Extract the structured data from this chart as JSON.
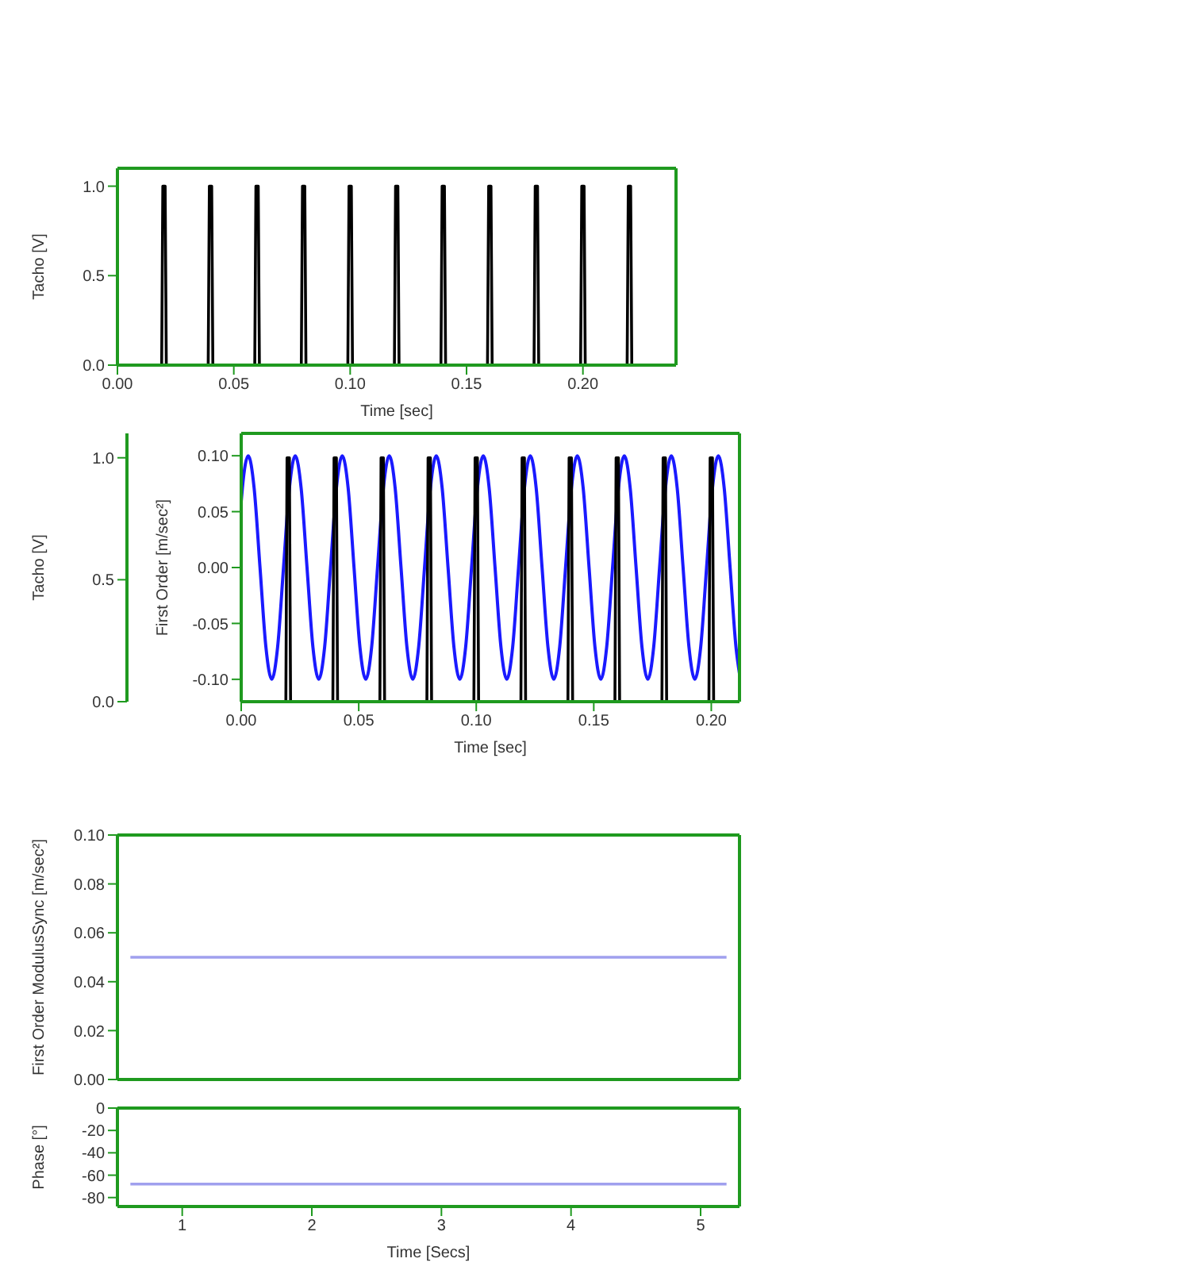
{
  "chart_data": [
    {
      "type": "line",
      "xlabel": "Time [sec]",
      "ylabel": "Tacho [V]",
      "marker": "none",
      "xlim": [
        0,
        0.24
      ],
      "xticks": [
        {
          "value": 0,
          "label": "0.00"
        },
        {
          "value": 0.05,
          "label": "0.05"
        },
        {
          "value": 0.1,
          "label": "0.10"
        },
        {
          "value": 0.15,
          "label": "0.15"
        },
        {
          "value": 0.2,
          "label": "0.20"
        }
      ],
      "ylim": [
        0,
        1.1
      ],
      "yticks": [
        {
          "value": 0,
          "label": "0.0"
        },
        {
          "value": 0.5,
          "label": "0.5"
        },
        {
          "value": 1,
          "label": "1.0"
        }
      ],
      "series": [
        {
          "color": "#000000",
          "x": [
            0,
            0.019,
            0.0195,
            0.0205,
            0.021,
            0.039,
            0.0395,
            0.0405,
            0.041,
            0.059,
            0.0595,
            0.0605,
            0.061,
            0.079,
            0.0795,
            0.0805,
            0.081,
            0.099,
            0.0995,
            0.1005,
            0.101,
            0.119,
            0.1195,
            0.1205,
            0.121,
            0.139,
            0.1395,
            0.1405,
            0.141,
            0.159,
            0.1595,
            0.1605,
            0.161,
            0.179,
            0.1795,
            0.1805,
            0.181,
            0.199,
            0.1995,
            0.2005,
            0.201,
            0.219,
            0.2195,
            0.2205,
            0.221,
            0.24
          ],
          "values": [
            0,
            0,
            1,
            1,
            0,
            0,
            1,
            1,
            0,
            0,
            1,
            1,
            0,
            0,
            1,
            1,
            0,
            0,
            1,
            1,
            0,
            0,
            1,
            1,
            0,
            0,
            1,
            1,
            0,
            0,
            1,
            1,
            0,
            0,
            1,
            1,
            0,
            0,
            1,
            1,
            0,
            0,
            1,
            1,
            0,
            0
          ]
        }
      ]
    },
    {
      "type": "line",
      "xlabel": "Time [sec]",
      "ylabel": "Tacho [V]",
      "y2label": "First Order [m/sec²]",
      "marker": "none",
      "xlim": [
        0,
        0.212
      ],
      "xticks": [
        {
          "value": 0,
          "label": "0.00"
        },
        {
          "value": 0.05,
          "label": "0.05"
        },
        {
          "value": 0.1,
          "label": "0.10"
        },
        {
          "value": 0.15,
          "label": "0.15"
        },
        {
          "value": 0.2,
          "label": "0.20"
        }
      ],
      "ylim": [
        0,
        1.1
      ],
      "yticks": [
        {
          "value": 0,
          "label": "0.0"
        },
        {
          "value": 0.5,
          "label": "0.5"
        },
        {
          "value": 1,
          "label": "1.0"
        }
      ],
      "y2lim": [
        -0.12,
        0.12
      ],
      "y2ticks": [
        {
          "value": -0.1,
          "label": "-0.10"
        },
        {
          "value": -0.05,
          "label": "-0.05"
        },
        {
          "value": 0,
          "label": "0.00"
        },
        {
          "value": 0.05,
          "label": "0.05"
        },
        {
          "value": 0.1,
          "label": "0.10"
        }
      ],
      "series": [
        {
          "color": "#1a1aff",
          "axis": "y2",
          "x": [
            0,
            0.0005,
            0.003,
            0.0055,
            0.008,
            0.0105,
            0.013,
            0.0155,
            0.018,
            0.0205,
            0.023,
            0.0255,
            0.028,
            0.0305,
            0.033,
            0.0355,
            0.038,
            0.0405,
            0.043,
            0.0455,
            0.048,
            0.0505,
            0.053,
            0.0555,
            0.058,
            0.0605,
            0.063,
            0.0655,
            0.068,
            0.0705,
            0.073,
            0.0755,
            0.078,
            0.0805,
            0.083,
            0.0855,
            0.088,
            0.0905,
            0.093,
            0.0955,
            0.098,
            0.1005,
            0.103,
            0.1055,
            0.108,
            0.1105,
            0.113,
            0.1155,
            0.118,
            0.1205,
            0.123,
            0.1255,
            0.128,
            0.1305,
            0.133,
            0.1355,
            0.138,
            0.1405,
            0.143,
            0.1455,
            0.148,
            0.1505,
            0.153,
            0.1555,
            0.158,
            0.1605,
            0.163,
            0.1655,
            0.168,
            0.1705,
            0.173,
            0.1755,
            0.178,
            0.1805,
            0.183,
            0.1855,
            0.188,
            0.1905,
            0.193,
            0.1955,
            0.198,
            0.2005,
            0.203,
            0.2055,
            0.208,
            0.2105,
            0.212
          ],
          "values": [
            0.059,
            0.071,
            0.1,
            0.071,
            0,
            -0.071,
            -0.1,
            -0.071,
            0,
            0.071,
            0.1,
            0.071,
            0,
            -0.071,
            -0.1,
            -0.071,
            0,
            0.071,
            0.1,
            0.071,
            0,
            -0.071,
            -0.1,
            -0.071,
            0,
            0.071,
            0.1,
            0.071,
            0,
            -0.071,
            -0.1,
            -0.071,
            0,
            0.071,
            0.1,
            0.071,
            0,
            -0.071,
            -0.1,
            -0.071,
            0,
            0.071,
            0.1,
            0.071,
            0,
            -0.071,
            -0.1,
            -0.071,
            0,
            0.071,
            0.1,
            0.071,
            0,
            -0.071,
            -0.1,
            -0.071,
            0,
            0.071,
            0.1,
            0.071,
            0,
            -0.071,
            -0.1,
            -0.071,
            0,
            0.071,
            0.1,
            0.071,
            0,
            -0.071,
            -0.1,
            -0.071,
            0,
            0.071,
            0.1,
            0.071,
            0,
            -0.071,
            -0.1,
            -0.071,
            0,
            0.071,
            0.1,
            0.071,
            0,
            -0.071,
            -0.095
          ]
        },
        {
          "color": "#000000",
          "x": [
            0,
            0.019,
            0.0195,
            0.0205,
            0.021,
            0.039,
            0.0395,
            0.0405,
            0.041,
            0.059,
            0.0595,
            0.0605,
            0.061,
            0.079,
            0.0795,
            0.0805,
            0.081,
            0.099,
            0.0995,
            0.1005,
            0.101,
            0.119,
            0.1195,
            0.1205,
            0.121,
            0.139,
            0.1395,
            0.1405,
            0.141,
            0.159,
            0.1595,
            0.1605,
            0.161,
            0.179,
            0.1795,
            0.1805,
            0.181,
            0.199,
            0.1995,
            0.2005,
            0.201
          ],
          "values": [
            0,
            0,
            1,
            1,
            0,
            0,
            1,
            1,
            0,
            0,
            1,
            1,
            0,
            0,
            1,
            1,
            0,
            0,
            1,
            1,
            0,
            0,
            1,
            1,
            0,
            0,
            1,
            1,
            0,
            0,
            1,
            1,
            0,
            0,
            1,
            1,
            0,
            0,
            1,
            1,
            0
          ]
        }
      ]
    },
    {
      "type": "line",
      "ylabel": "First Order ModulusSync [m/sec²]",
      "marker": "none",
      "tick_labels": "y",
      "xlim": [
        0.5,
        5.3
      ],
      "xticks": [
        1,
        2,
        3,
        4,
        5
      ],
      "ylim": [
        0,
        0.1
      ],
      "yticks": [
        {
          "value": 0,
          "label": "0.00"
        },
        {
          "value": 0.02,
          "label": "0.02"
        },
        {
          "value": 0.04,
          "label": "0.04"
        },
        {
          "value": 0.06,
          "label": "0.06"
        },
        {
          "value": 0.08,
          "label": "0.08"
        },
        {
          "value": 0.1,
          "label": "0.10"
        }
      ],
      "series": [
        {
          "color": "#a0a0ee",
          "x": [
            0.6,
            5.2
          ],
          "values": [
            0.05,
            0.05
          ]
        }
      ]
    },
    {
      "type": "line",
      "xlabel": "Time [Secs]",
      "ylabel": "Phase [°]",
      "marker": "none",
      "xlim": [
        0.5,
        5.3
      ],
      "xticks": [
        1,
        2,
        3,
        4,
        5
      ],
      "ylim": [
        -88,
        0
      ],
      "yticks": [
        0,
        -20,
        -40,
        -60,
        -80
      ],
      "series": [
        {
          "color": "#a0a0ee",
          "x": [
            0.6,
            5.2
          ],
          "values": [
            -68,
            -68
          ]
        }
      ]
    }
  ]
}
